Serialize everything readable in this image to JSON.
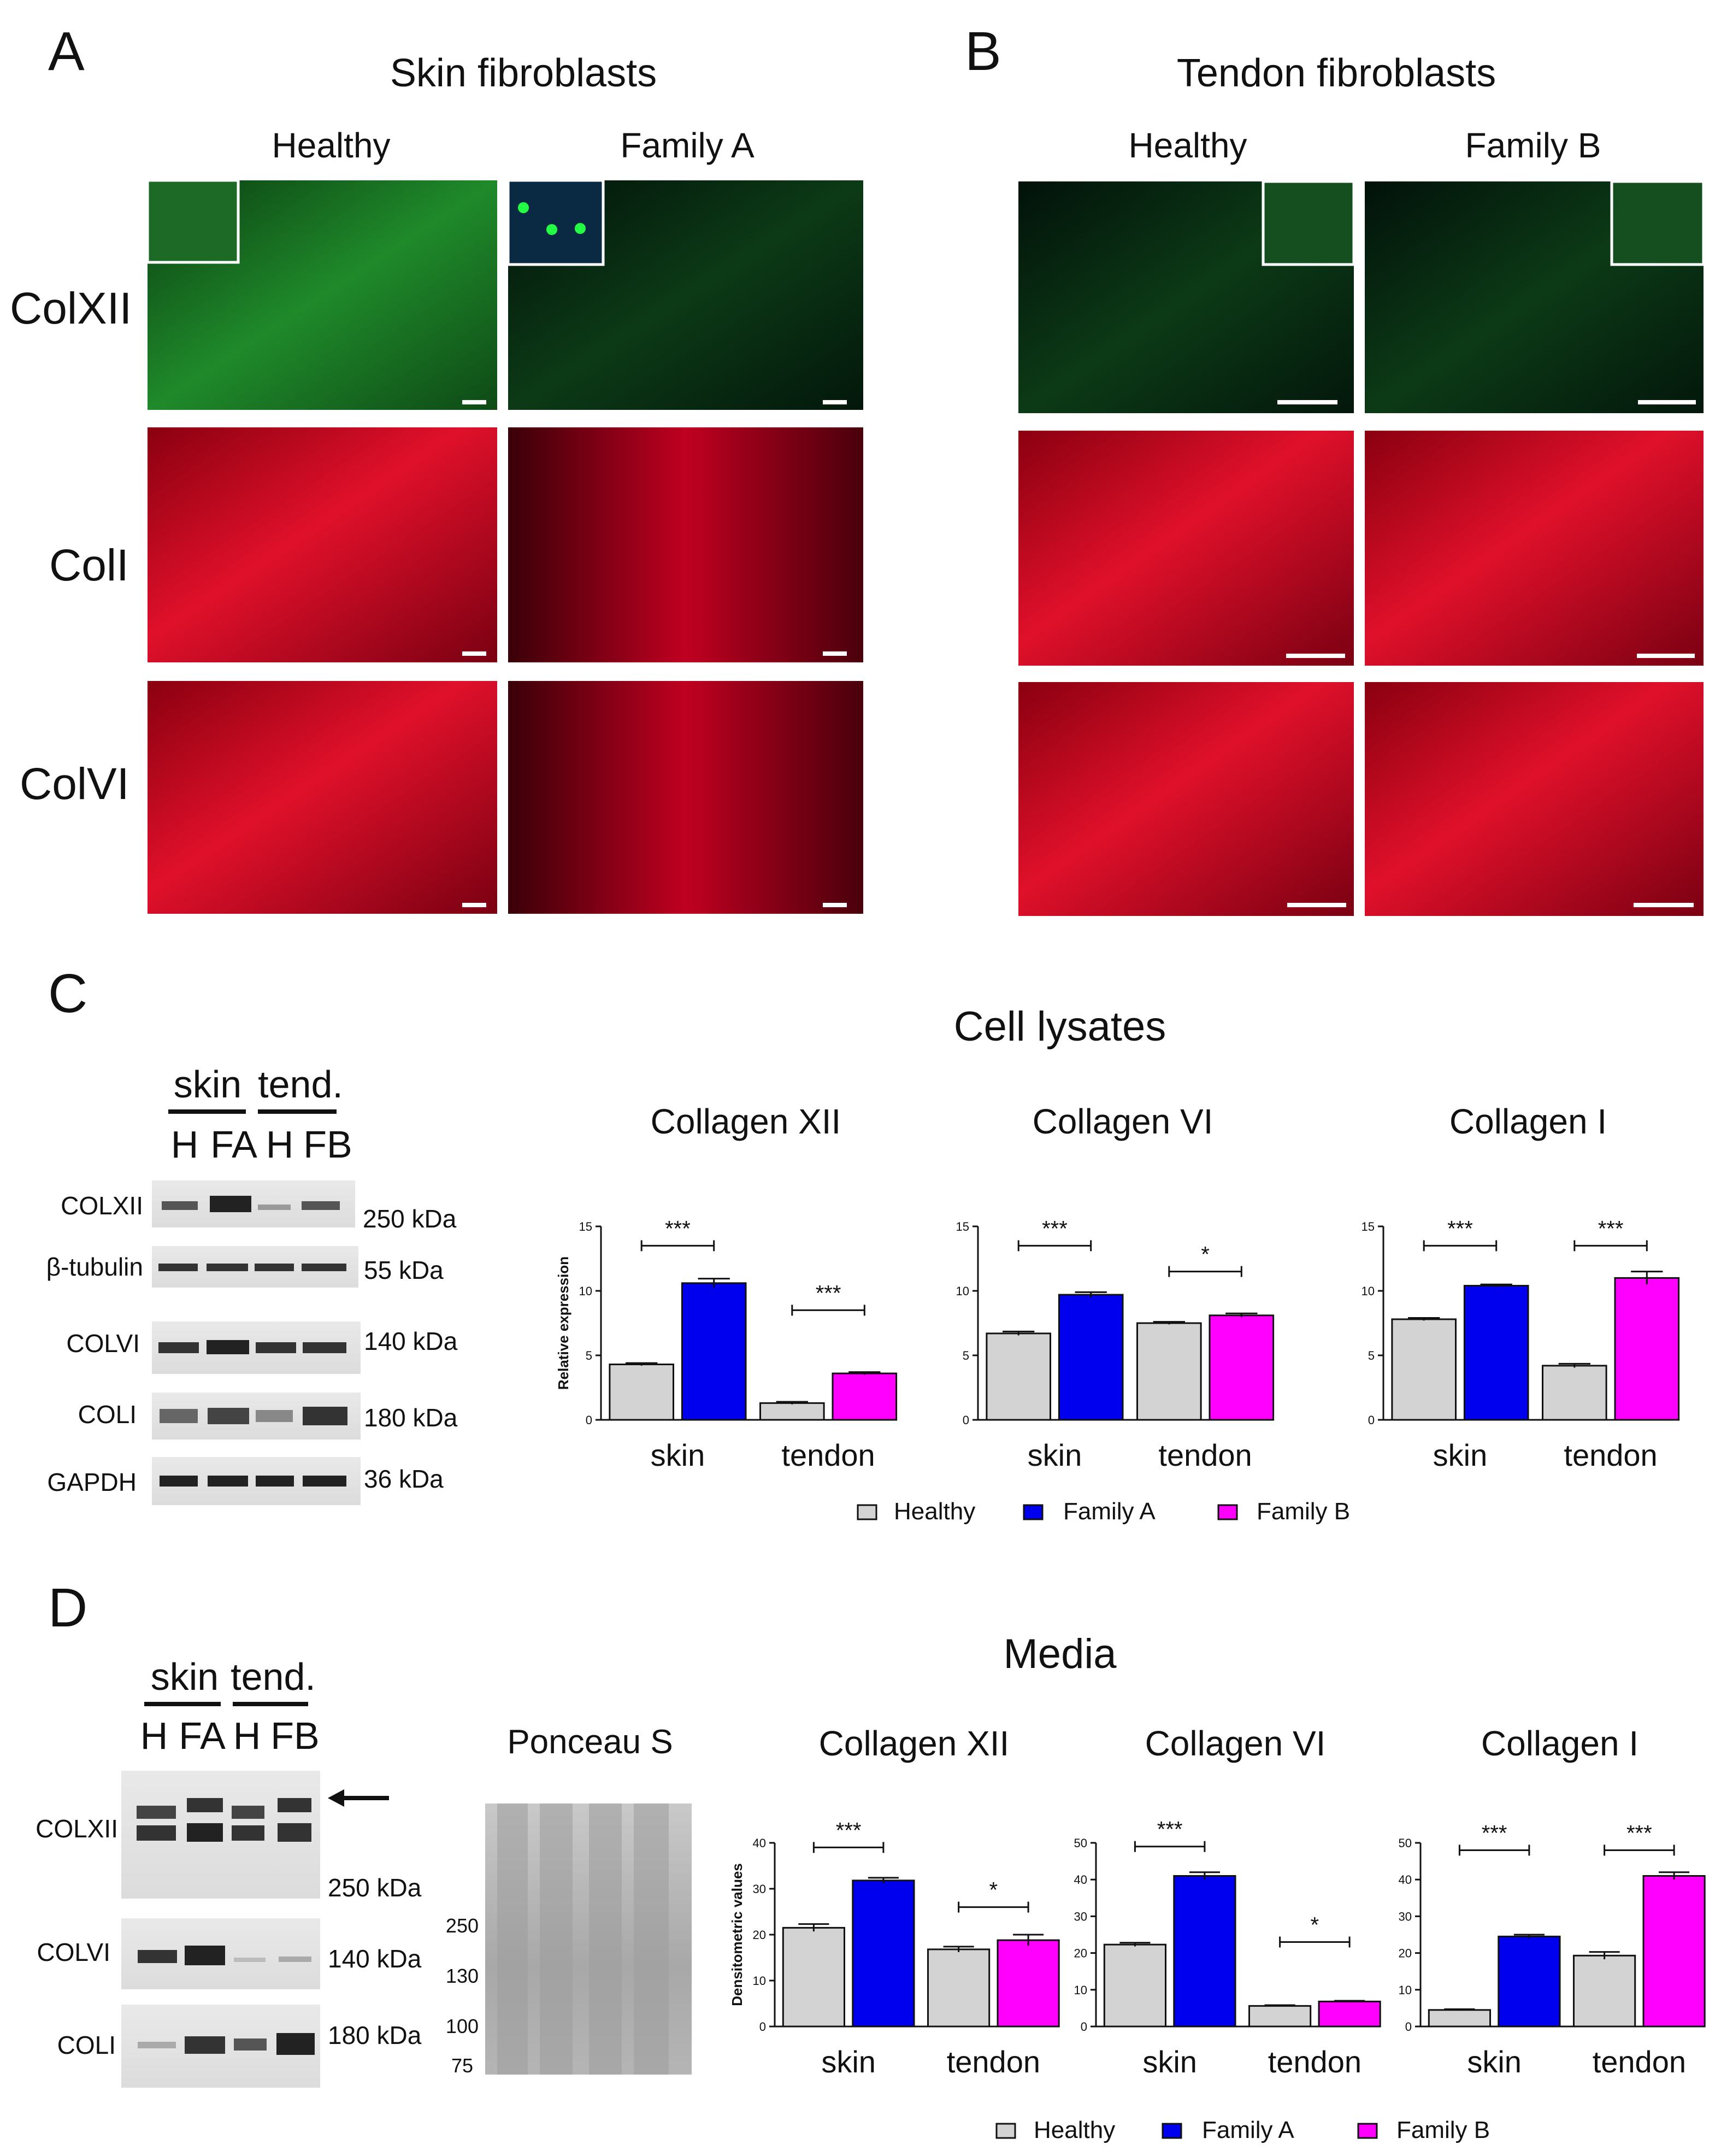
{
  "panel_a": {
    "letter": "A",
    "title": "Skin fibroblasts",
    "columns": [
      "Healthy",
      "Family A"
    ],
    "rows": [
      "ColXII",
      "ColI",
      "ColVI"
    ]
  },
  "panel_b": {
    "letter": "B",
    "title": "Tendon fibroblasts",
    "columns": [
      "Healthy",
      "Family B"
    ]
  },
  "panel_c": {
    "letter": "C",
    "title": "Cell lysates",
    "blot_groups": [
      "skin",
      "tend."
    ],
    "blot_lanes": [
      "H",
      "FA",
      "H",
      "FB"
    ],
    "blots": [
      {
        "name": "COLXII",
        "size": "250 kDa"
      },
      {
        "name": "β-tubulin",
        "size": "55 kDa"
      },
      {
        "name": "COLVI",
        "size": "140 kDa"
      },
      {
        "name": "COLI",
        "size": "180 kDa"
      },
      {
        "name": "GAPDH",
        "size": "36 kDa"
      }
    ]
  },
  "panel_d": {
    "letter": "D",
    "title": "Media",
    "blot_groups": [
      "skin",
      "tend."
    ],
    "blot_lanes": [
      "H",
      "FA",
      "H",
      "FB"
    ],
    "blots": [
      {
        "name": "COLXII",
        "size": "250 kDa"
      },
      {
        "name": "COLVI",
        "size": "140 kDa"
      },
      {
        "name": "COLI",
        "size": "180 kDa"
      }
    ],
    "ponceau": {
      "title": "Ponceau S",
      "markers": [
        "250",
        "130",
        "100",
        "75"
      ]
    }
  },
  "legend": [
    "Healthy",
    "Family A",
    "Family B"
  ],
  "colors": {
    "healthy": "#d3d3d3",
    "family_a": "#0000ee",
    "family_b": "#ff00ff"
  },
  "chart_data": [
    {
      "type": "bar",
      "panel": "C",
      "title": "Collagen XII",
      "ylabel": "Relative expression",
      "categories": [
        "skin",
        "tendon"
      ],
      "ylim": [
        0,
        15
      ],
      "yticks": [
        0,
        5,
        10,
        15
      ],
      "bars": [
        {
          "series": "Healthy",
          "category": "skin",
          "value": 4.3,
          "err": 0.1
        },
        {
          "series": "Family A",
          "category": "skin",
          "value": 10.6,
          "err": 0.35
        },
        {
          "series": "Healthy",
          "category": "tendon",
          "value": 1.3,
          "err": 0.1
        },
        {
          "series": "Family B",
          "category": "tendon",
          "value": 3.6,
          "err": 0.1
        }
      ],
      "significance": [
        {
          "category": "skin",
          "label": "***",
          "y": 13.5
        },
        {
          "category": "tendon",
          "label": "***",
          "y": 8.5
        }
      ]
    },
    {
      "type": "bar",
      "panel": "C",
      "title": "Collagen VI",
      "ylabel": "",
      "categories": [
        "skin",
        "tendon"
      ],
      "ylim": [
        0,
        15
      ],
      "yticks": [
        0,
        5,
        10,
        15
      ],
      "bars": [
        {
          "series": "Healthy",
          "category": "skin",
          "value": 6.7,
          "err": 0.15
        },
        {
          "series": "Family A",
          "category": "skin",
          "value": 9.7,
          "err": 0.2
        },
        {
          "series": "Healthy",
          "category": "tendon",
          "value": 7.5,
          "err": 0.1
        },
        {
          "series": "Family B",
          "category": "tendon",
          "value": 8.1,
          "err": 0.15
        }
      ],
      "significance": [
        {
          "category": "skin",
          "label": "***",
          "y": 13.5
        },
        {
          "category": "tendon",
          "label": "*",
          "y": 11.5
        }
      ]
    },
    {
      "type": "bar",
      "panel": "C",
      "title": "Collagen I",
      "ylabel": "",
      "categories": [
        "skin",
        "tendon"
      ],
      "ylim": [
        0,
        15
      ],
      "yticks": [
        0,
        5,
        10,
        15
      ],
      "bars": [
        {
          "series": "Healthy",
          "category": "skin",
          "value": 7.8,
          "err": 0.1
        },
        {
          "series": "Family A",
          "category": "skin",
          "value": 10.4,
          "err": 0.1
        },
        {
          "series": "Healthy",
          "category": "tendon",
          "value": 4.2,
          "err": 0.15
        },
        {
          "series": "Family B",
          "category": "tendon",
          "value": 11.0,
          "err": 0.5
        }
      ],
      "significance": [
        {
          "category": "skin",
          "label": "***",
          "y": 13.5
        },
        {
          "category": "tendon",
          "label": "***",
          "y": 13.5
        }
      ]
    },
    {
      "type": "bar",
      "panel": "D",
      "title": "Collagen XII",
      "ylabel": "Densitometric values",
      "categories": [
        "skin",
        "tendon"
      ],
      "ylim": [
        0,
        40
      ],
      "yticks": [
        0,
        10,
        20,
        30,
        40
      ],
      "bars": [
        {
          "series": "Healthy",
          "category": "skin",
          "value": 21.5,
          "err": 0.8
        },
        {
          "series": "Family A",
          "category": "skin",
          "value": 31.8,
          "err": 0.6
        },
        {
          "series": "Healthy",
          "category": "tendon",
          "value": 16.8,
          "err": 0.6
        },
        {
          "series": "Family B",
          "category": "tendon",
          "value": 18.8,
          "err": 1.2
        }
      ],
      "significance": [
        {
          "category": "skin",
          "label": "***",
          "y": 39
        },
        {
          "category": "tendon",
          "label": "*",
          "y": 26
        }
      ]
    },
    {
      "type": "bar",
      "panel": "D",
      "title": "Collagen VI",
      "ylabel": "",
      "categories": [
        "skin",
        "tendon"
      ],
      "ylim": [
        0,
        50
      ],
      "yticks": [
        0,
        10,
        20,
        30,
        40,
        50
      ],
      "bars": [
        {
          "series": "Healthy",
          "category": "skin",
          "value": 22.3,
          "err": 0.5
        },
        {
          "series": "Family A",
          "category": "skin",
          "value": 41.0,
          "err": 1.0
        },
        {
          "series": "Healthy",
          "category": "tendon",
          "value": 5.6,
          "err": 0.2
        },
        {
          "series": "Family B",
          "category": "tendon",
          "value": 6.8,
          "err": 0.2
        }
      ],
      "significance": [
        {
          "category": "skin",
          "label": "***",
          "y": 49
        },
        {
          "category": "tendon",
          "label": "*",
          "y": 23
        }
      ]
    },
    {
      "type": "bar",
      "panel": "D",
      "title": "Collagen I",
      "ylabel": "",
      "categories": [
        "skin",
        "tendon"
      ],
      "ylim": [
        0,
        50
      ],
      "yticks": [
        0,
        10,
        20,
        30,
        40,
        50
      ],
      "bars": [
        {
          "series": "Healthy",
          "category": "skin",
          "value": 4.5,
          "err": 0.2
        },
        {
          "series": "Family A",
          "category": "skin",
          "value": 24.5,
          "err": 0.5
        },
        {
          "series": "Healthy",
          "category": "tendon",
          "value": 19.3,
          "err": 1.0
        },
        {
          "series": "Family B",
          "category": "tendon",
          "value": 41.0,
          "err": 1.0
        }
      ],
      "significance": [
        {
          "category": "skin",
          "label": "***",
          "y": 48
        },
        {
          "category": "tendon",
          "label": "***",
          "y": 48
        }
      ]
    }
  ]
}
